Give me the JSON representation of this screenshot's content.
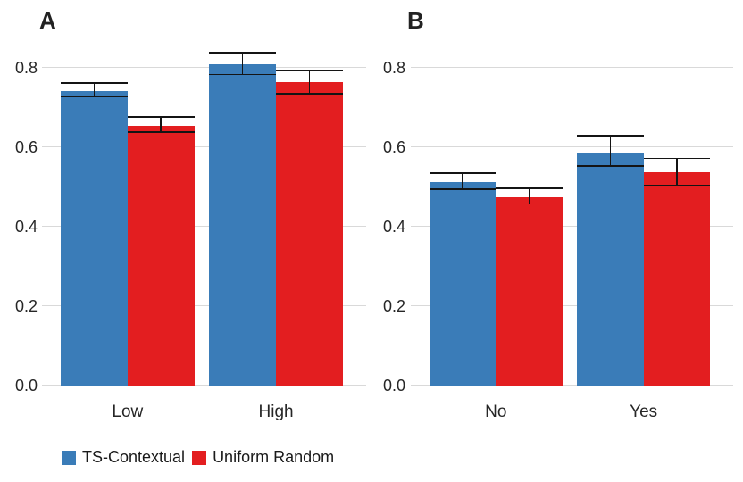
{
  "colors": {
    "ts_contextual_blue": "#3A7CB8",
    "uniform_random_red": "#E31E20",
    "gridline_gray": "#D9D9D9",
    "errorbar_black": "#141414",
    "text_dark": "#262626"
  },
  "legend": {
    "items": [
      {
        "label": "TS-Contextual",
        "color_key": "ts_contextual_blue"
      },
      {
        "label": "Uniform Random",
        "color_key": "uniform_random_red"
      }
    ],
    "position": "bottom-left"
  },
  "chart_data": [
    {
      "type": "bar",
      "panel_label": "A",
      "categories": [
        "Low",
        "High"
      ],
      "series": [
        {
          "name": "TS-Contextual",
          "values": [
            0.741,
            0.81
          ],
          "err_low": [
            0.725,
            0.781
          ],
          "err_high": [
            0.76,
            0.836
          ]
        },
        {
          "name": "Uniform Random",
          "values": [
            0.654,
            0.763
          ],
          "err_low": [
            0.636,
            0.733
          ],
          "err_high": [
            0.674,
            0.793
          ]
        }
      ],
      "title": "",
      "xlabel": "",
      "ylabel": "",
      "ylim": [
        0.0,
        0.87
      ],
      "yticks": [
        0.0,
        0.2,
        0.4,
        0.6,
        0.8
      ],
      "ytick_labels": [
        "0.0",
        "0.2",
        "0.4",
        "0.6",
        "0.8"
      ],
      "grid": true,
      "error_bars": true,
      "legend_position": "bottom-left"
    },
    {
      "type": "bar",
      "panel_label": "B",
      "categories": [
        "No",
        "Yes"
      ],
      "series": [
        {
          "name": "TS-Contextual",
          "values": [
            0.512,
            0.587
          ],
          "err_low": [
            0.493,
            0.551
          ],
          "err_high": [
            0.533,
            0.628
          ]
        },
        {
          "name": "Uniform Random",
          "values": [
            0.474,
            0.536
          ],
          "err_low": [
            0.456,
            0.503
          ],
          "err_high": [
            0.495,
            0.57
          ]
        }
      ],
      "title": "",
      "xlabel": "",
      "ylabel": "",
      "ylim": [
        0.0,
        0.87
      ],
      "yticks": [
        0.0,
        0.2,
        0.4,
        0.6,
        0.8
      ],
      "ytick_labels": [
        "0.0",
        "0.2",
        "0.4",
        "0.6",
        "0.8"
      ],
      "grid": true,
      "error_bars": true,
      "legend_position": "none"
    }
  ]
}
